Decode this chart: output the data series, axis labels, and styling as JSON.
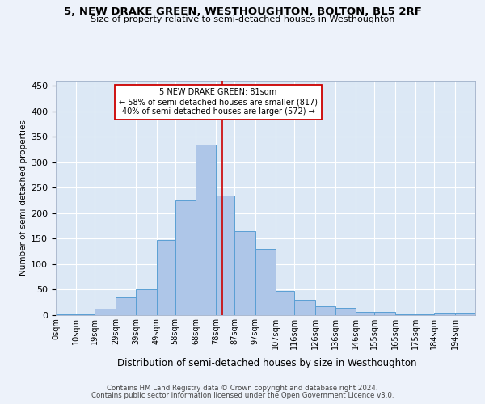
{
  "title": "5, NEW DRAKE GREEN, WESTHOUGHTON, BOLTON, BL5 2RF",
  "subtitle": "Size of property relative to semi-detached houses in Westhoughton",
  "xlabel": "Distribution of semi-detached houses by size in Westhoughton",
  "ylabel": "Number of semi-detached properties",
  "annotation_line1": "5 NEW DRAKE GREEN: 81sqm",
  "annotation_line2": "← 58% of semi-detached houses are smaller (817)",
  "annotation_line3": "40% of semi-detached houses are larger (572) →",
  "property_size": 81,
  "bar_left_edges": [
    0,
    10,
    19,
    29,
    39,
    49,
    58,
    68,
    78,
    87,
    97,
    107,
    116,
    126,
    136,
    146,
    155,
    165,
    175,
    184,
    194
  ],
  "bar_heights": [
    2,
    2,
    12,
    35,
    50,
    148,
    225,
    335,
    235,
    165,
    130,
    48,
    30,
    18,
    15,
    6,
    6,
    2,
    2,
    5,
    4
  ],
  "tick_labels": [
    "0sqm",
    "10sqm",
    "19sqm",
    "29sqm",
    "39sqm",
    "49sqm",
    "58sqm",
    "68sqm",
    "78sqm",
    "87sqm",
    "97sqm",
    "107sqm",
    "116sqm",
    "126sqm",
    "136sqm",
    "146sqm",
    "155sqm",
    "165sqm",
    "175sqm",
    "184sqm",
    "194sqm"
  ],
  "bar_color": "#aec6e8",
  "bar_edge_color": "#5a9fd4",
  "vline_color": "#cc0000",
  "annotation_box_color": "#cc0000",
  "bg_color": "#dce8f5",
  "grid_color": "#ffffff",
  "fig_bg_color": "#edf2fa",
  "ylim": [
    0,
    460
  ],
  "footer1": "Contains HM Land Registry data © Crown copyright and database right 2024.",
  "footer2": "Contains public sector information licensed under the Open Government Licence v3.0."
}
